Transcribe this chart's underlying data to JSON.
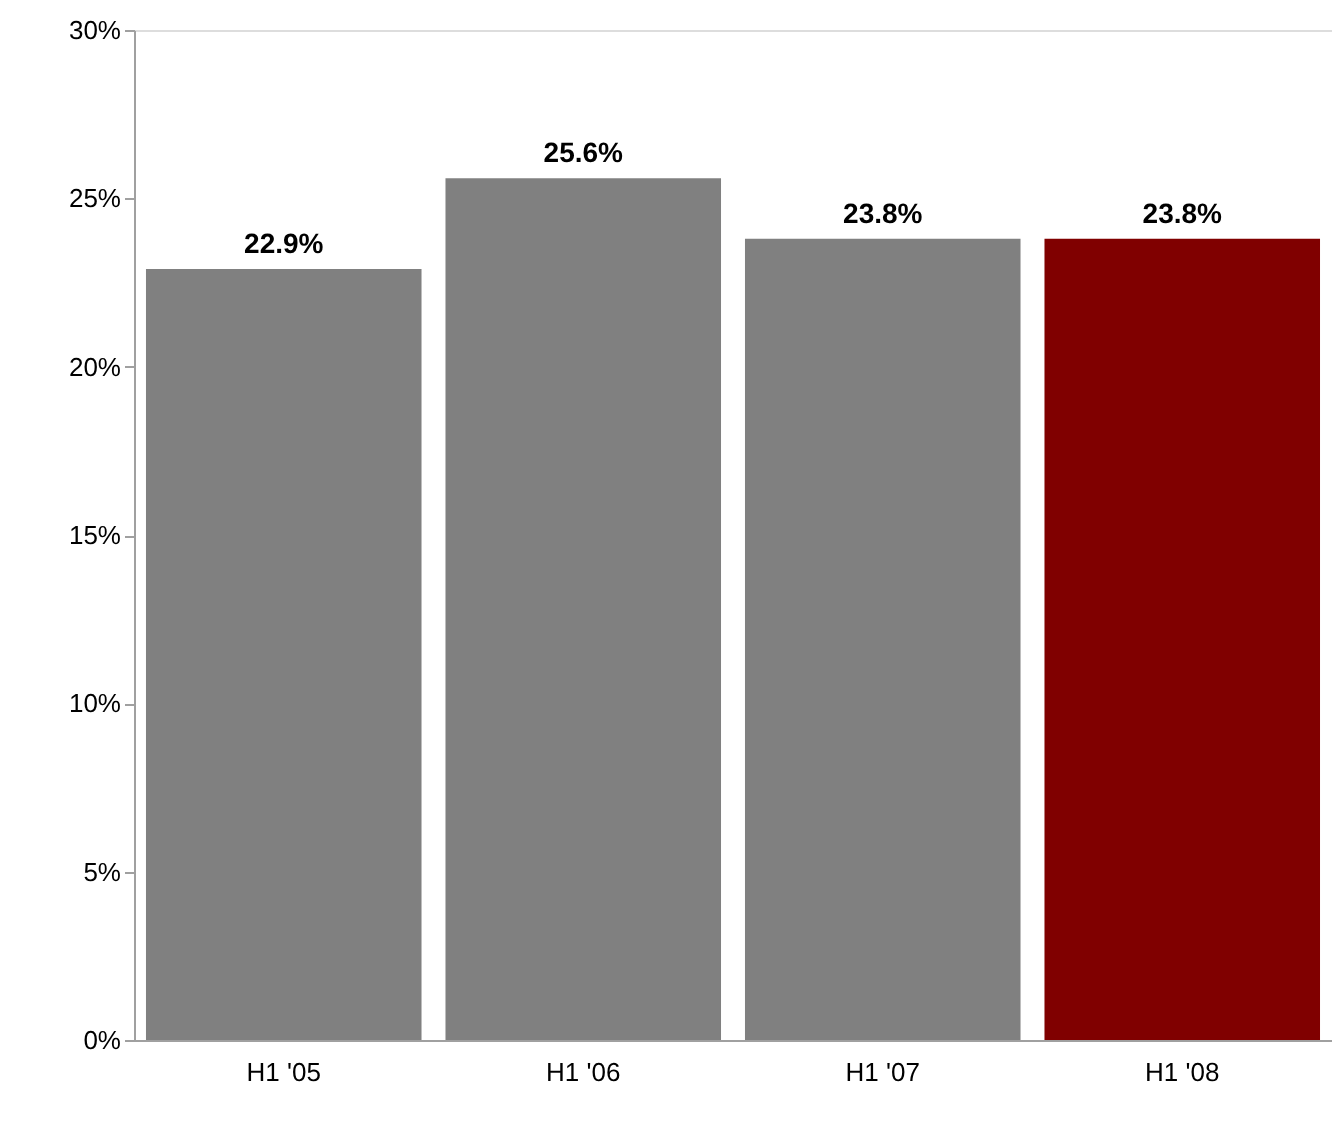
{
  "chart_data": {
    "type": "bar",
    "categories": [
      "H1 '05",
      "H1 '06",
      "H1 '07",
      "H1 '08"
    ],
    "values": [
      22.9,
      25.6,
      23.8,
      23.8
    ],
    "colors": [
      "#808080",
      "#808080",
      "#808080",
      "#800000"
    ],
    "value_labels": [
      "22.9%",
      "25.6%",
      "23.8%",
      "23.8%"
    ],
    "ylim": [
      0,
      30
    ],
    "yticks": [
      {
        "value": 0,
        "label": "0%"
      },
      {
        "value": 5,
        "label": "5%"
      },
      {
        "value": 10,
        "label": "10%"
      },
      {
        "value": 15,
        "label": "15%"
      },
      {
        "value": 20,
        "label": "20%"
      },
      {
        "value": 25,
        "label": "25%"
      },
      {
        "value": 30,
        "label": "30%"
      }
    ],
    "grid": false
  }
}
